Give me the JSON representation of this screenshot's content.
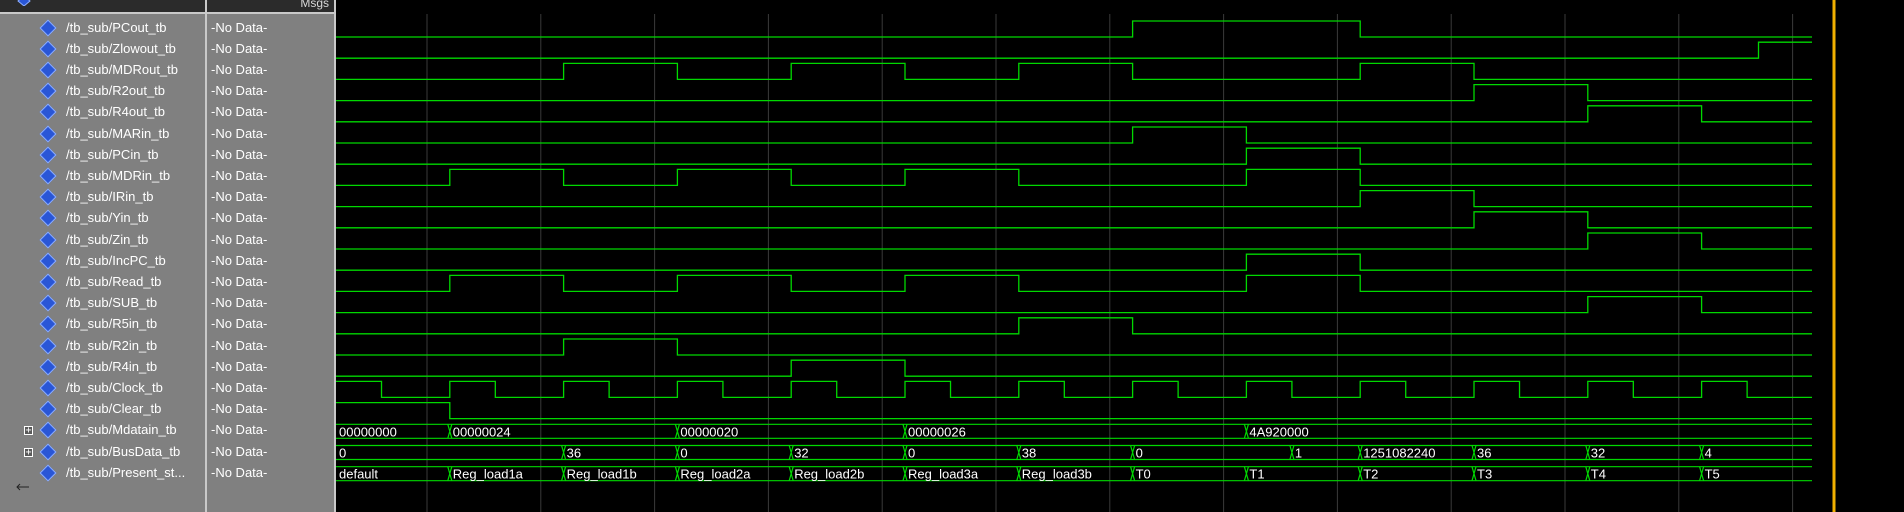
{
  "header": {
    "msgs_label": "Msgs"
  },
  "signals": [
    {
      "name": "/tb_sub/PCout_tb",
      "value": "-No Data-",
      "kind": "bit",
      "expandable": false
    },
    {
      "name": "/tb_sub/Zlowout_tb",
      "value": "-No Data-",
      "kind": "bit",
      "expandable": false
    },
    {
      "name": "/tb_sub/MDRout_tb",
      "value": "-No Data-",
      "kind": "bit",
      "expandable": false
    },
    {
      "name": "/tb_sub/R2out_tb",
      "value": "-No Data-",
      "kind": "bit",
      "expandable": false
    },
    {
      "name": "/tb_sub/R4out_tb",
      "value": "-No Data-",
      "kind": "bit",
      "expandable": false
    },
    {
      "name": "/tb_sub/MARin_tb",
      "value": "-No Data-",
      "kind": "bit",
      "expandable": false
    },
    {
      "name": "/tb_sub/PCin_tb",
      "value": "-No Data-",
      "kind": "bit",
      "expandable": false
    },
    {
      "name": "/tb_sub/MDRin_tb",
      "value": "-No Data-",
      "kind": "bit",
      "expandable": false
    },
    {
      "name": "/tb_sub/IRin_tb",
      "value": "-No Data-",
      "kind": "bit",
      "expandable": false
    },
    {
      "name": "/tb_sub/Yin_tb",
      "value": "-No Data-",
      "kind": "bit",
      "expandable": false
    },
    {
      "name": "/tb_sub/Zin_tb",
      "value": "-No Data-",
      "kind": "bit",
      "expandable": false
    },
    {
      "name": "/tb_sub/IncPC_tb",
      "value": "-No Data-",
      "kind": "bit",
      "expandable": false
    },
    {
      "name": "/tb_sub/Read_tb",
      "value": "-No Data-",
      "kind": "bit",
      "expandable": false
    },
    {
      "name": "/tb_sub/SUB_tb",
      "value": "-No Data-",
      "kind": "bit",
      "expandable": false
    },
    {
      "name": "/tb_sub/R5in_tb",
      "value": "-No Data-",
      "kind": "bit",
      "expandable": false
    },
    {
      "name": "/tb_sub/R2in_tb",
      "value": "-No Data-",
      "kind": "bit",
      "expandable": false
    },
    {
      "name": "/tb_sub/R4in_tb",
      "value": "-No Data-",
      "kind": "bit",
      "expandable": false
    },
    {
      "name": "/tb_sub/Clock_tb",
      "value": "-No Data-",
      "kind": "bit",
      "expandable": false
    },
    {
      "name": "/tb_sub/Clear_tb",
      "value": "-No Data-",
      "kind": "bit",
      "expandable": false
    },
    {
      "name": "/tb_sub/Mdatain_tb",
      "value": "-No Data-",
      "kind": "bus",
      "expandable": true
    },
    {
      "name": "/tb_sub/BusData_tb",
      "value": "-No Data-",
      "kind": "bus",
      "expandable": true
    },
    {
      "name": "/tb_sub/Present_st...",
      "value": "-No Data-",
      "kind": "bus",
      "expandable": false
    }
  ],
  "waves": {
    "time_end": 13.0,
    "bit_waves": [
      [
        [
          0,
          0
        ],
        [
          7,
          1
        ],
        [
          9,
          0
        ]
      ],
      [
        [
          0,
          0
        ],
        [
          12.5,
          1
        ]
      ],
      [
        [
          0,
          0
        ],
        [
          2,
          1
        ],
        [
          3,
          0
        ],
        [
          4,
          1
        ],
        [
          5,
          0
        ],
        [
          6,
          1
        ],
        [
          7,
          0
        ],
        [
          9,
          1
        ],
        [
          10,
          0
        ]
      ],
      [
        [
          0,
          0
        ],
        [
          10,
          1
        ],
        [
          11,
          0
        ]
      ],
      [
        [
          0,
          0
        ],
        [
          11,
          1
        ],
        [
          12,
          0
        ]
      ],
      [
        [
          0,
          0
        ],
        [
          7,
          1
        ],
        [
          8,
          0
        ]
      ],
      [
        [
          0,
          0
        ],
        [
          8,
          1
        ],
        [
          9,
          0
        ]
      ],
      [
        [
          0,
          0
        ],
        [
          1,
          1
        ],
        [
          2,
          0
        ],
        [
          3,
          1
        ],
        [
          4,
          0
        ],
        [
          5,
          1
        ],
        [
          6,
          0
        ],
        [
          8,
          1
        ],
        [
          9,
          0
        ]
      ],
      [
        [
          0,
          0
        ],
        [
          9,
          1
        ],
        [
          10,
          0
        ]
      ],
      [
        [
          0,
          0
        ],
        [
          10,
          1
        ],
        [
          11,
          0
        ]
      ],
      [
        [
          0,
          0
        ],
        [
          11,
          1
        ],
        [
          12,
          0
        ]
      ],
      [
        [
          0,
          0
        ],
        [
          8,
          1
        ],
        [
          9,
          0
        ]
      ],
      [
        [
          0,
          0
        ],
        [
          1,
          1
        ],
        [
          2,
          0
        ],
        [
          3,
          1
        ],
        [
          4,
          0
        ],
        [
          5,
          1
        ],
        [
          6,
          0
        ],
        [
          8,
          1
        ],
        [
          9,
          0
        ]
      ],
      [
        [
          0,
          0
        ],
        [
          11,
          1
        ],
        [
          12,
          0
        ]
      ],
      [
        [
          0,
          0
        ],
        [
          6,
          1
        ],
        [
          7,
          0
        ]
      ],
      [
        [
          0,
          0
        ],
        [
          2,
          1
        ],
        [
          3,
          0
        ]
      ],
      [
        [
          0,
          0
        ],
        [
          4,
          1
        ],
        [
          5,
          0
        ]
      ],
      [
        [
          0,
          1
        ],
        [
          0.4,
          0
        ],
        [
          1,
          1
        ],
        [
          1.4,
          0
        ],
        [
          2,
          1
        ],
        [
          2.4,
          0
        ],
        [
          3,
          1
        ],
        [
          3.4,
          0
        ],
        [
          4,
          1
        ],
        [
          4.4,
          0
        ],
        [
          5,
          1
        ],
        [
          5.4,
          0
        ],
        [
          6,
          1
        ],
        [
          6.4,
          0
        ],
        [
          7,
          1
        ],
        [
          7.4,
          0
        ],
        [
          8,
          1
        ],
        [
          8.4,
          0
        ],
        [
          9,
          1
        ],
        [
          9.4,
          0
        ],
        [
          10,
          1
        ],
        [
          10.4,
          0
        ],
        [
          11,
          1
        ],
        [
          11.4,
          0
        ],
        [
          12,
          1
        ],
        [
          12.4,
          0
        ]
      ],
      [
        [
          0,
          1
        ],
        [
          1,
          0
        ]
      ]
    ],
    "bus_waves": [
      [
        [
          0,
          "00000000"
        ],
        [
          1,
          "00000024"
        ],
        [
          3,
          "00000020"
        ],
        [
          5,
          "00000026"
        ],
        [
          8,
          "4A920000"
        ]
      ],
      [
        [
          0,
          "0"
        ],
        [
          2,
          "36"
        ],
        [
          3,
          "0"
        ],
        [
          4,
          "32"
        ],
        [
          5,
          "0"
        ],
        [
          6,
          "38"
        ],
        [
          7,
          "0"
        ],
        [
          8.4,
          "1"
        ],
        [
          9,
          "1251082240"
        ],
        [
          10,
          "36"
        ],
        [
          11,
          "32"
        ],
        [
          12,
          "4"
        ]
      ],
      [
        [
          0,
          "default"
        ],
        [
          1,
          "Reg_load1a"
        ],
        [
          2,
          "Reg_load1b"
        ],
        [
          3,
          "Reg_load2a"
        ],
        [
          4,
          "Reg_load2b"
        ],
        [
          5,
          "Reg_load3a"
        ],
        [
          6,
          "Reg_load3b"
        ],
        [
          7,
          "T0"
        ],
        [
          8,
          "T1"
        ],
        [
          9,
          "T2"
        ],
        [
          10,
          "T3"
        ],
        [
          11,
          "T4"
        ],
        [
          12,
          "T5"
        ]
      ]
    ]
  },
  "colors": {
    "wave": "#00d800",
    "cursor": "#f0b000",
    "grid": "#3a3a3a",
    "pane_bg": "#808080"
  }
}
